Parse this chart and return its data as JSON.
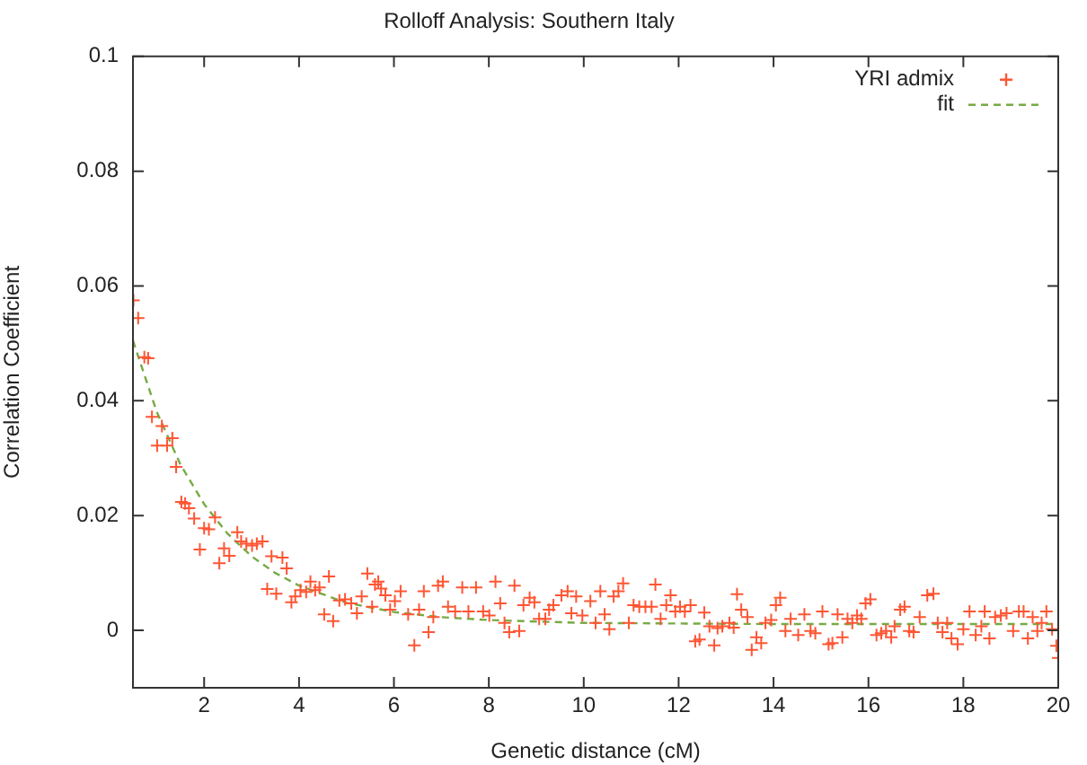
{
  "chart_data": {
    "type": "scatter",
    "title": "Rolloff Analysis: Southern Italy",
    "xlabel": "Genetic distance (cM)",
    "ylabel": "Correlation Coefficient",
    "xlim": [
      0.5,
      20
    ],
    "xticks": [
      2,
      4,
      6,
      8,
      10,
      12,
      14,
      16,
      18,
      20
    ],
    "ylim": [
      -0.01,
      0.1
    ],
    "yticks": [
      0,
      0.02,
      0.04,
      0.06,
      0.08,
      0.1
    ],
    "grid": false,
    "legend": "top right",
    "marker": "cross",
    "series": [
      {
        "name": "YRI admix",
        "color": "#ff5533",
        "x": [
          0.51,
          0.61,
          0.74,
          0.82,
          0.9,
          1.01,
          1.11,
          1.22,
          1.33,
          1.41,
          1.52,
          1.6,
          1.68,
          1.79,
          1.91,
          2.0,
          2.1,
          2.23,
          2.32,
          2.42,
          2.53,
          2.7,
          2.78,
          2.89,
          3.01,
          3.11,
          3.23,
          3.33,
          3.42,
          3.52,
          3.65,
          3.74,
          3.84,
          3.92,
          4.03,
          4.15,
          4.24,
          4.34,
          4.43,
          4.53,
          4.63,
          4.72,
          4.85,
          4.97,
          5.1,
          5.22,
          5.32,
          5.44,
          5.54,
          5.6,
          5.67,
          5.73,
          5.82,
          5.92,
          6.02,
          6.14,
          6.3,
          6.43,
          6.53,
          6.63,
          6.73,
          6.83,
          6.93,
          7.03,
          7.14,
          7.29,
          7.44,
          7.57,
          7.73,
          7.88,
          8.01,
          8.14,
          8.24,
          8.33,
          8.43,
          8.54,
          8.64,
          8.73,
          8.86,
          8.96,
          9.06,
          9.19,
          9.27,
          9.36,
          9.53,
          9.66,
          9.74,
          9.84,
          9.97,
          10.14,
          10.25,
          10.35,
          10.44,
          10.54,
          10.63,
          10.73,
          10.83,
          10.95,
          11.05,
          11.17,
          11.3,
          11.43,
          11.51,
          11.62,
          11.74,
          11.83,
          11.93,
          12.03,
          12.13,
          12.25,
          12.35,
          12.44,
          12.54,
          12.65,
          12.75,
          12.82,
          12.92,
          13.07,
          13.16,
          13.23,
          13.32,
          13.45,
          13.54,
          13.64,
          13.74,
          13.83,
          13.95,
          14.05,
          14.14,
          14.25,
          14.36,
          14.52,
          14.65,
          14.78,
          14.88,
          15.03,
          15.16,
          15.24,
          15.35,
          15.45,
          15.56,
          15.66,
          15.76,
          15.85,
          15.94,
          16.04,
          16.17,
          16.27,
          16.37,
          16.48,
          16.55,
          16.67,
          16.76,
          16.86,
          16.95,
          17.08,
          17.24,
          17.37,
          17.46,
          17.56,
          17.66,
          17.75,
          17.88,
          18.0,
          18.13,
          18.26,
          18.38,
          18.45,
          18.55,
          18.67,
          18.79,
          18.91,
          19.05,
          19.17,
          19.27,
          19.36,
          19.46,
          19.56,
          19.65,
          19.75,
          19.87,
          19.96,
          20.0
        ],
        "values": [
          0.0575,
          0.0544,
          0.0476,
          0.0474,
          0.0372,
          0.0322,
          0.0356,
          0.0322,
          0.0335,
          0.0285,
          0.0224,
          0.0221,
          0.0213,
          0.0195,
          0.0141,
          0.0178,
          0.0176,
          0.0197,
          0.0117,
          0.0143,
          0.013,
          0.0171,
          0.0155,
          0.0151,
          0.0148,
          0.0151,
          0.0155,
          0.0072,
          0.0129,
          0.0064,
          0.0127,
          0.0108,
          0.0049,
          0.0059,
          0.007,
          0.0067,
          0.0085,
          0.007,
          0.0075,
          0.0028,
          0.0094,
          0.0016,
          0.0052,
          0.0054,
          0.0047,
          0.003,
          0.0059,
          0.0099,
          0.0041,
          0.008,
          0.0085,
          0.0073,
          0.0061,
          0.0036,
          0.0051,
          0.0068,
          0.0028,
          -0.0026,
          0.0036,
          0.0068,
          -0.0003,
          0.0023,
          0.0078,
          0.0085,
          0.0041,
          0.0033,
          0.0075,
          0.0033,
          0.0075,
          0.0033,
          0.0026,
          0.0085,
          0.0047,
          0.0013,
          -0.0003,
          0.0078,
          -0.0001,
          0.0044,
          0.0057,
          0.0049,
          0.002,
          0.002,
          0.0036,
          0.0044,
          0.0061,
          0.0068,
          0.003,
          0.0059,
          0.0026,
          0.0051,
          0.0013,
          0.0068,
          0.0028,
          0.0002,
          0.0059,
          0.0068,
          0.0082,
          0.0013,
          0.0044,
          0.0041,
          0.0041,
          0.0041,
          0.008,
          0.002,
          0.0044,
          0.0061,
          0.0033,
          0.0041,
          0.0033,
          0.0044,
          -0.0019,
          -0.0016,
          0.0031,
          0.0007,
          -0.0026,
          0.0004,
          0.0007,
          0.0013,
          0.0005,
          0.0063,
          0.0036,
          0.0023,
          -0.0034,
          -0.0012,
          -0.0022,
          0.0013,
          0.0018,
          0.0044,
          0.0057,
          -0.0001,
          0.002,
          -0.0008,
          0.0028,
          -0.0001,
          -0.0005,
          0.0033,
          -0.0024,
          -0.0022,
          0.0028,
          -0.0012,
          0.002,
          0.0013,
          0.0026,
          0.002,
          0.0047,
          0.0054,
          -0.0008,
          -0.0005,
          -0.0001,
          -0.0012,
          0.0007,
          0.0036,
          0.0041,
          -0.0001,
          -0.0003,
          0.0023,
          0.0061,
          0.0064,
          0.0013,
          -0.0003,
          0.0013,
          -0.0014,
          -0.0024,
          0.0002,
          0.0033,
          -0.0008,
          0.0007,
          0.0033,
          -0.0014,
          0.0023,
          0.0026,
          0.003,
          -0.0001,
          0.0033,
          0.0033,
          -0.0014,
          0.0023,
          -0.0001,
          0.0013,
          0.0033,
          0.0002,
          -0.0027,
          -0.0048
        ]
      },
      {
        "name": "fit",
        "type": "line",
        "color": "#77aa44",
        "line_style": "dashed",
        "marker": "none",
        "x": [
          0.5,
          1,
          1.5,
          2,
          2.5,
          3,
          3.5,
          4,
          5,
          6,
          7,
          8,
          10,
          12,
          14,
          16,
          18,
          20
        ],
        "values": [
          0.0505,
          0.0381,
          0.0289,
          0.022,
          0.0168,
          0.0129,
          0.01,
          0.0078,
          0.0048,
          0.0032,
          0.0023,
          0.0018,
          0.0013,
          0.0012,
          0.0011,
          0.0011,
          0.0011,
          0.0011
        ]
      }
    ]
  }
}
